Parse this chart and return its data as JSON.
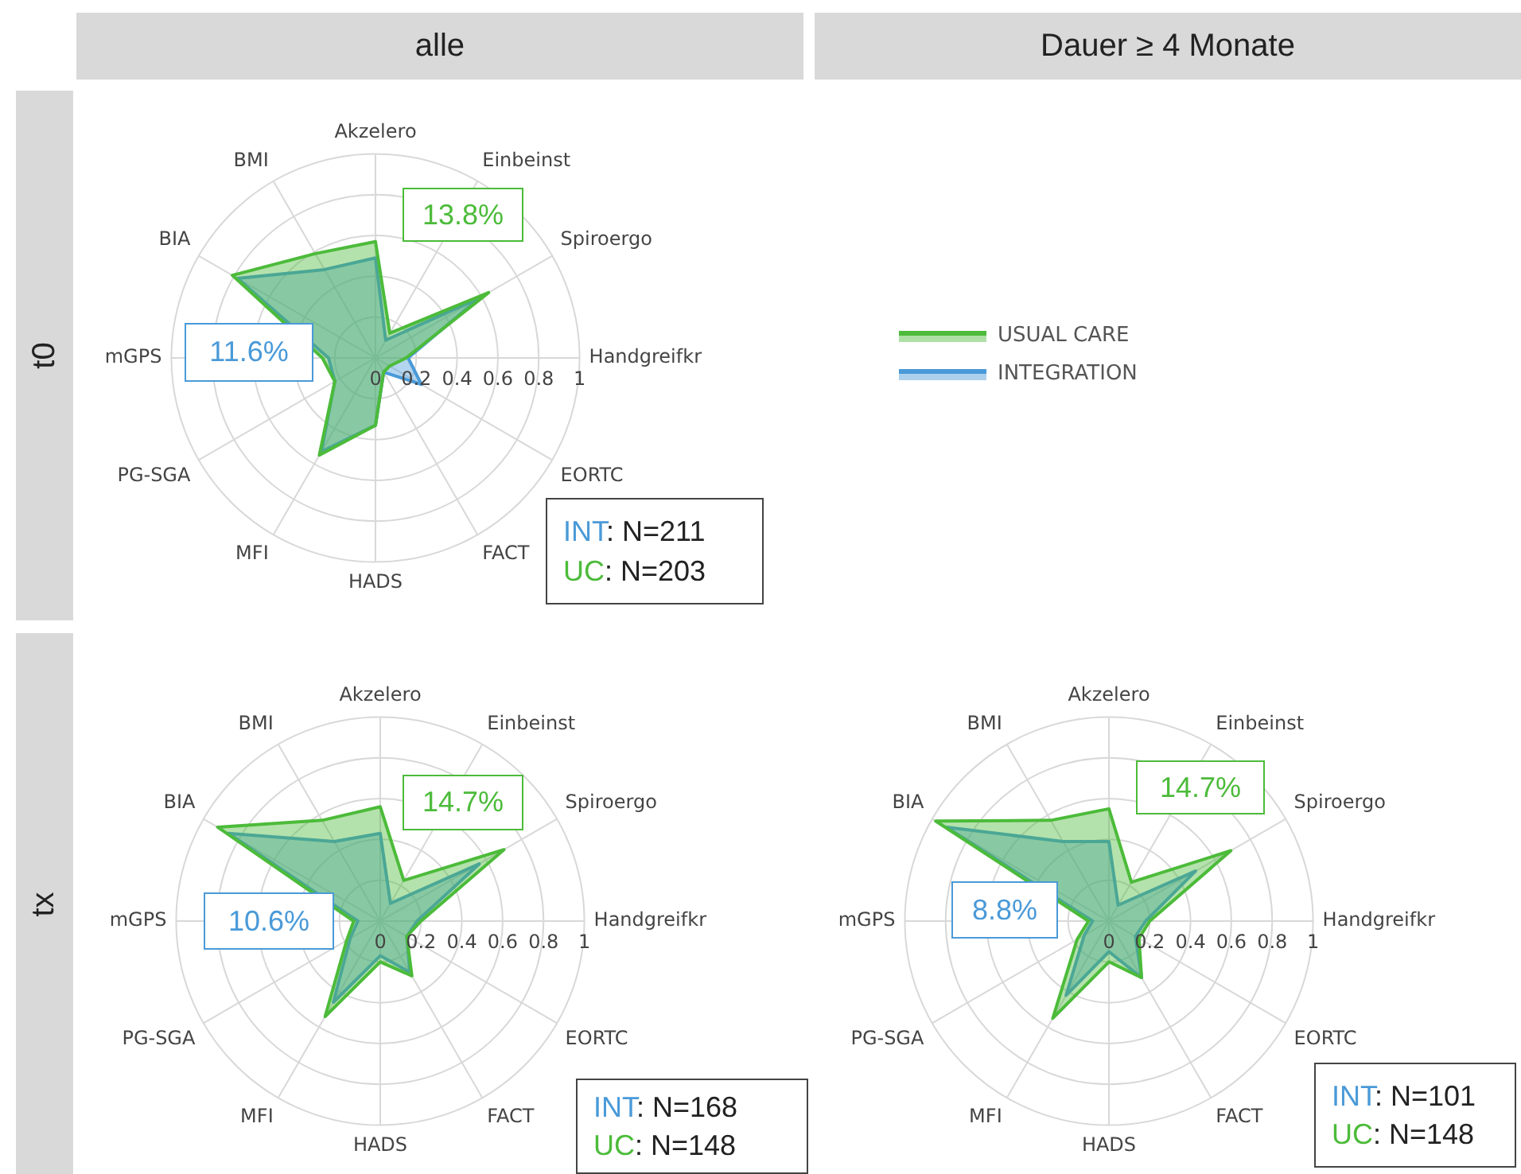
{
  "chart_data": [
    {
      "type": "radar",
      "title": "alle",
      "ylabel": "t0",
      "categories": [
        "Akzelero",
        "Einbeinst",
        "Spiroergo",
        "Handgreifkr",
        "EORTC",
        "FACT",
        "HADS",
        "MFI",
        "PG-SGA",
        "mGPS",
        "BIA",
        "BMI"
      ],
      "series": [
        {
          "name": "USUAL CARE",
          "color": "#4cbb3a",
          "values": [
            0.57,
            0.14,
            0.64,
            0.15,
            0.08,
            0.08,
            0.33,
            0.55,
            0.23,
            0.26,
            0.81,
            0.59
          ]
        },
        {
          "name": "INTEGRATION",
          "color": "#4a9ad8",
          "values": [
            0.49,
            0.1,
            0.59,
            0.16,
            0.26,
            0.08,
            0.33,
            0.53,
            0.23,
            0.23,
            0.78,
            0.5
          ]
        }
      ],
      "ylim": [
        0,
        1
      ],
      "yticks": [
        0,
        0.2,
        0.4,
        0.6,
        0.8,
        1
      ],
      "grid": true,
      "legend": "right",
      "marker": "none",
      "line_style": "solid",
      "annotations": [
        "13.8%",
        "11.6%",
        "INT: N=211",
        "UC: N=203"
      ]
    },
    {
      "type": "radar",
      "ylabel": "tx",
      "categories": [
        "Akzelero",
        "Einbeinst",
        "Spiroergo",
        "Handgreifkr",
        "EORTC",
        "FACT",
        "HADS",
        "MFI",
        "PG-SGA",
        "mGPS",
        "BIA",
        "BMI"
      ],
      "series": [
        {
          "color": "#4cbb3a",
          "values": [
            0.56,
            0.23,
            0.7,
            0.2,
            0.15,
            0.31,
            0.2,
            0.54,
            0.19,
            0.13,
            0.92,
            0.57
          ]
        },
        {
          "color": "#4a9ad8",
          "values": [
            0.43,
            0.1,
            0.56,
            0.18,
            0.15,
            0.29,
            0.17,
            0.46,
            0.17,
            0.11,
            0.86,
            0.45
          ]
        }
      ],
      "ylim": [
        0,
        1
      ],
      "yticks": [
        0,
        0.2,
        0.4,
        0.6,
        0.8,
        1
      ],
      "grid": true,
      "marker": "none",
      "line_style": "solid",
      "annotations": [
        "14.7%",
        "10.6%",
        "INT: N=168",
        "UC: N=148"
      ]
    },
    {
      "type": "radar",
      "title": "Dauer ≥ 4 Monate",
      "categories": [
        "Akzelero",
        "Einbeinst",
        "Spiroergo",
        "Handgreifkr",
        "EORTC",
        "FACT",
        "HADS",
        "MFI",
        "PG-SGA",
        "mGPS",
        "BIA",
        "BMI"
      ],
      "series": [
        {
          "color": "#4cbb3a",
          "values": [
            0.55,
            0.22,
            0.69,
            0.2,
            0.17,
            0.32,
            0.2,
            0.55,
            0.18,
            0.1,
            0.98,
            0.57
          ]
        },
        {
          "color": "#4a9ad8",
          "values": [
            0.39,
            0.09,
            0.49,
            0.18,
            0.15,
            0.32,
            0.15,
            0.42,
            0.14,
            0.08,
            0.92,
            0.45
          ]
        }
      ],
      "ylim": [
        0,
        1
      ],
      "yticks": [
        0,
        0.2,
        0.4,
        0.6,
        0.8,
        1
      ],
      "grid": true,
      "marker": "none",
      "line_style": "solid",
      "annotations": [
        "14.7%",
        "8.8%",
        "INT: N=101",
        "UC: N=148"
      ]
    }
  ]
}
